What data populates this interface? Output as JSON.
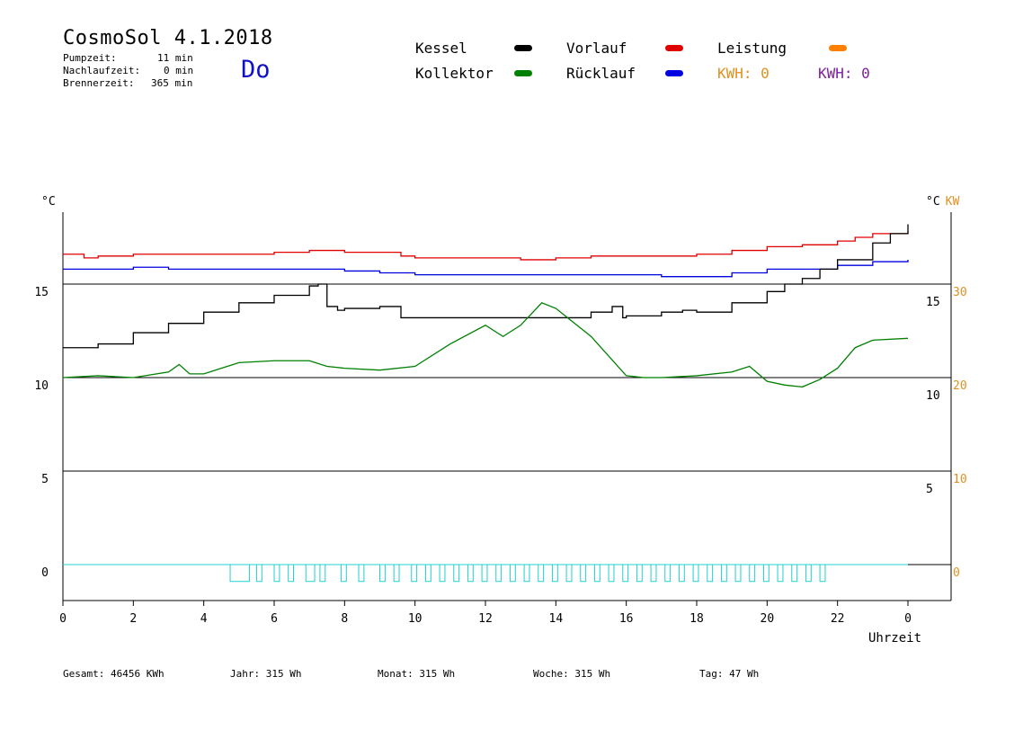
{
  "header": {
    "title": "CosmoSol 4.1.2018",
    "day": "Do",
    "stats": [
      {
        "label": "Pumpzeit:",
        "value": "11 min"
      },
      {
        "label": "Nachlaufzeit:",
        "value": "0 min"
      },
      {
        "label": "Brennerzeit:",
        "value": "365 min"
      }
    ]
  },
  "legend": {
    "kessel": "Kessel",
    "vorlauf": "Vorlauf",
    "leistung": "Leistung",
    "kollektor": "Kollektor",
    "ruecklauf": "Rücklauf",
    "kwh1": "KWH: 0",
    "kwh2": "KWH: 0",
    "colors": {
      "kessel": "#000000",
      "vorlauf": "#e00000",
      "leistung": "#ff8000",
      "kollektor": "#008000",
      "ruecklauf": "#0000e0",
      "kwh1": "#e09020",
      "kwh2": "#8020a0",
      "pump": "#20d0d0"
    }
  },
  "footer": {
    "gesamt": "Gesamt:  46456 KWh",
    "jahr": "Jahr:    315 Wh",
    "monat": "Monat:    315 Wh",
    "woche": "Woche:    315 Wh",
    "tag": "Tag:     47 Wh"
  },
  "chart_data": {
    "type": "line",
    "xlabel": "Uhrzeit",
    "ylabel_left": "°C",
    "ylabel_right": "°C KW",
    "x_ticks": [
      "0",
      "2",
      "4",
      "6",
      "8",
      "10",
      "12",
      "14",
      "16",
      "18",
      "20",
      "22",
      "0"
    ],
    "left_ticks": [
      "15",
      "10",
      "5",
      "0"
    ],
    "right_temp_ticks": [
      "15",
      "10",
      "5"
    ],
    "right_kw_ticks": [
      "30",
      "20",
      "10",
      "0"
    ],
    "xlim": [
      0,
      24
    ],
    "ylim": [
      -1.5,
      19
    ],
    "grid": "horizontal at 0, 5, 10, 15",
    "series": [
      {
        "name": "Vorlauf",
        "color": "#e00000",
        "x": [
          0,
          0.6,
          1,
          2,
          3,
          4,
          5,
          6,
          7,
          8,
          9,
          9.6,
          10,
          11,
          12,
          13,
          14,
          15,
          16,
          17,
          18,
          19,
          20,
          21,
          22,
          22.5,
          23,
          24
        ],
        "y": [
          16.6,
          16.4,
          16.5,
          16.6,
          16.6,
          16.6,
          16.6,
          16.7,
          16.8,
          16.7,
          16.7,
          16.5,
          16.4,
          16.4,
          16.4,
          16.3,
          16.4,
          16.5,
          16.5,
          16.5,
          16.6,
          16.8,
          17.0,
          17.1,
          17.3,
          17.5,
          17.7,
          17.8
        ]
      },
      {
        "name": "Rücklauf",
        "color": "#0000e0",
        "x": [
          0,
          1,
          2,
          3,
          4,
          5,
          6,
          7,
          8,
          9,
          10,
          11,
          12,
          13,
          14,
          15,
          16,
          17,
          18,
          19,
          20,
          21,
          22,
          23,
          24
        ],
        "y": [
          15.8,
          15.8,
          15.9,
          15.8,
          15.8,
          15.8,
          15.8,
          15.8,
          15.7,
          15.6,
          15.5,
          15.5,
          15.5,
          15.5,
          15.5,
          15.5,
          15.5,
          15.4,
          15.4,
          15.6,
          15.8,
          15.8,
          16.0,
          16.2,
          16.3
        ]
      },
      {
        "name": "Kessel",
        "color": "#000000",
        "x": [
          0,
          0.5,
          1,
          2,
          3,
          4,
          5,
          6,
          7,
          7.25,
          7.5,
          7.8,
          8,
          9,
          9.5,
          9.6,
          10,
          11,
          12,
          13,
          14,
          15,
          15.6,
          15.9,
          16,
          17,
          17.6,
          18,
          19,
          20,
          20.5,
          21,
          21.5,
          22,
          23,
          23.5,
          24
        ],
        "y": [
          11.6,
          11.6,
          11.8,
          12.4,
          12.9,
          13.5,
          14.0,
          14.4,
          14.9,
          15.0,
          13.8,
          13.6,
          13.7,
          13.8,
          13.8,
          13.2,
          13.2,
          13.2,
          13.2,
          13.2,
          13.2,
          13.5,
          13.8,
          13.2,
          13.3,
          13.5,
          13.6,
          13.5,
          14.0,
          14.6,
          15.0,
          15.3,
          15.8,
          16.3,
          17.2,
          17.7,
          18.2
        ]
      },
      {
        "name": "Kollektor",
        "color": "#008000",
        "x": [
          0,
          1,
          2,
          3,
          3.3,
          3.6,
          4,
          5,
          6,
          7,
          7.5,
          8,
          9,
          10,
          11,
          12,
          12.5,
          13,
          13.6,
          14,
          15,
          16,
          16.5,
          17,
          18,
          19,
          19.5,
          20,
          20.5,
          21,
          21.5,
          22,
          22.5,
          23,
          24
        ],
        "y": [
          10.0,
          10.1,
          10.0,
          10.3,
          10.7,
          10.2,
          10.2,
          10.8,
          10.9,
          10.9,
          10.6,
          10.5,
          10.4,
          10.6,
          11.8,
          12.8,
          12.2,
          12.8,
          14.0,
          13.7,
          12.2,
          10.1,
          10.0,
          10.0,
          10.1,
          10.3,
          10.6,
          9.8,
          9.6,
          9.5,
          9.9,
          10.5,
          11.6,
          12.0,
          12.1
        ]
      },
      {
        "name": "Pumpe",
        "color": "#20d0d0",
        "pulses_start": [
          4.75,
          5.5,
          6,
          6.4,
          6.9,
          7.3,
          7.9,
          8.4,
          9,
          9.4,
          9.9,
          10.3,
          10.7,
          11.1,
          11.5,
          11.9,
          12.3,
          12.7,
          13.1,
          13.5,
          13.9,
          14.3,
          14.7,
          15.1,
          15.5,
          15.9,
          16.3,
          16.7,
          17.1,
          17.5,
          17.9,
          18.3,
          18.7,
          19.1,
          19.5,
          19.9,
          20.3,
          20.7,
          21.1,
          21.5
        ],
        "pulses_width": [
          0.55,
          0.15,
          0.15,
          0.15,
          0.25,
          0.15,
          0.15,
          0.15,
          0.15,
          0.15,
          0.15,
          0.15,
          0.15,
          0.15,
          0.15,
          0.15,
          0.15,
          0.15,
          0.15,
          0.15,
          0.15,
          0.15,
          0.15,
          0.15,
          0.15,
          0.15,
          0.15,
          0.15,
          0.15,
          0.15,
          0.15,
          0.15,
          0.15,
          0.15,
          0.15,
          0.15,
          0.15,
          0.15,
          0.15,
          0.15
        ],
        "baseline": 0,
        "low": -0.9
      }
    ]
  }
}
